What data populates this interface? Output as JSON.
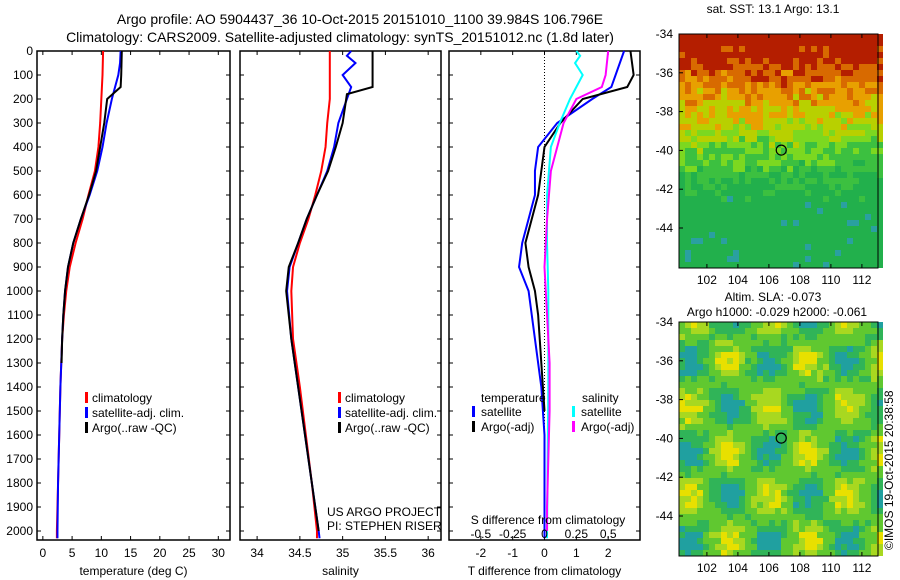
{
  "title_line1": "Argo profile: AO 5904437_36 10-Oct-2015 20151010_1100 39.984S 106.796E",
  "title_line2": "Climatology: CARS2009. Satellite-adjusted climatology: synTS_20151012.nc (1.8d later)",
  "credit": "©IMOS 19-Oct-2015 20:38:58",
  "project_line1": "US ARGO PROJECT",
  "project_line2": "PI: STEPHEN RISER",
  "colors": {
    "climatology": "#ff0000",
    "satellite": "#0000ff",
    "argo": "#000000",
    "sat_sal": "#00ffff",
    "argo_sal": "#ff00ff"
  },
  "chart_data": [
    {
      "type": "line",
      "name": "temperature",
      "xlabel": "temperature (deg C)",
      "xlim": [
        -1,
        32
      ],
      "xticks": [
        0,
        5,
        10,
        15,
        20,
        25,
        30
      ],
      "ylim": [
        0,
        2050
      ],
      "yticks": [
        0,
        100,
        200,
        300,
        400,
        500,
        600,
        700,
        800,
        900,
        1000,
        1100,
        1200,
        1300,
        1400,
        1500,
        1600,
        1700,
        1800,
        1900,
        2000
      ],
      "legend": [
        "climatology",
        "satellite-adj. clim.",
        "Argo(..raw -QC)"
      ],
      "series": [
        {
          "name": "climatology",
          "color": "#ff0000",
          "depth": [
            0,
            100,
            200,
            300,
            400,
            500,
            600,
            700,
            800,
            900,
            1000,
            1100,
            1200,
            1400,
            1600,
            1800,
            2000,
            2030
          ],
          "values": [
            10.3,
            10.2,
            10.0,
            9.8,
            9.5,
            8.9,
            7.8,
            6.8,
            5.6,
            4.6,
            4.0,
            3.6,
            3.3,
            3.0,
            2.8,
            2.6,
            2.4,
            2.4
          ]
        },
        {
          "name": "satellite-adj. clim.",
          "color": "#0000ff",
          "depth": [
            0,
            50,
            100,
            200,
            300,
            400,
            500,
            600,
            700,
            800,
            900,
            1000,
            1100,
            1200,
            1400,
            1600,
            1800,
            2000,
            2030
          ],
          "values": [
            13.3,
            13.2,
            12.9,
            11.8,
            10.9,
            10.2,
            9.3,
            8.0,
            6.5,
            5.2,
            4.3,
            3.8,
            3.5,
            3.3,
            3.0,
            2.8,
            2.6,
            2.5,
            2.5
          ]
        },
        {
          "name": "Argo(..raw -QC)",
          "color": "#000000",
          "depth": [
            0,
            100,
            150,
            200,
            300,
            400,
            500,
            600,
            700,
            800,
            900,
            1000,
            1100,
            1200,
            1300
          ],
          "values": [
            13.5,
            13.4,
            13.3,
            11.0,
            10.5,
            9.8,
            9.1,
            7.9,
            6.5,
            5.2,
            4.3,
            3.8,
            3.5,
            3.3,
            3.2
          ]
        }
      ]
    },
    {
      "type": "line",
      "name": "salinity",
      "xlabel": "salinity",
      "xlim": [
        33.8,
        36.15
      ],
      "xticks": [
        34,
        34.5,
        35,
        35.5,
        36
      ],
      "legend": [
        "climatology",
        "satellite-adj. clim.",
        "Argo(..raw -QC)"
      ],
      "series": [
        {
          "name": "climatology",
          "color": "#ff0000",
          "depth": [
            0,
            200,
            300,
            400,
            500,
            600,
            700,
            800,
            900,
            1000,
            1200,
            1400,
            1600,
            1800,
            2000,
            2030
          ],
          "values": [
            34.85,
            34.85,
            34.82,
            34.8,
            34.75,
            34.68,
            34.6,
            34.5,
            34.42,
            34.4,
            34.42,
            34.5,
            34.57,
            34.64,
            34.7,
            34.7
          ]
        },
        {
          "name": "satellite-adj. clim.",
          "color": "#0000ff",
          "depth": [
            0,
            20,
            50,
            100,
            150,
            200,
            300,
            400,
            500,
            600,
            700,
            800,
            900,
            1000,
            1200,
            1400,
            1600,
            1800,
            2000,
            2030
          ],
          "values": [
            35.1,
            35.05,
            35.15,
            35.0,
            35.1,
            35.05,
            34.95,
            34.9,
            34.82,
            34.7,
            34.58,
            34.48,
            34.38,
            34.35,
            34.4,
            34.48,
            34.56,
            34.64,
            34.72,
            34.73
          ]
        },
        {
          "name": "Argo(..raw -QC)",
          "color": "#000000",
          "depth": [
            0,
            150,
            180,
            300,
            400,
            500,
            600,
            700,
            800,
            900,
            1000,
            1200,
            1400,
            1600,
            1800,
            2000
          ],
          "values": [
            35.35,
            35.35,
            35.05,
            35.0,
            34.92,
            34.83,
            34.7,
            34.58,
            34.48,
            34.37,
            34.34,
            34.4,
            34.48,
            34.56,
            34.64,
            34.72
          ]
        }
      ]
    },
    {
      "type": "line",
      "name": "difference",
      "xlabel": "T difference from climatology",
      "xlabel2": "S difference from climatology",
      "xlim": [
        -3,
        3
      ],
      "xticks": [
        -2,
        -1,
        0,
        1,
        2
      ],
      "xticks2": [
        -0.5,
        -0.25,
        0,
        0.25,
        0.5
      ],
      "xtick2_labels": [
        "-0.5",
        "-0.25",
        "0",
        "0.25",
        "0.5"
      ],
      "legend_headers": [
        "temperature",
        "salinity"
      ],
      "legend": [
        "satellite",
        "Argo(-adj)",
        "satellite",
        "Argo(-adj)"
      ],
      "series": [
        {
          "name": "T satellite",
          "color": "#0000ff",
          "axis": "T",
          "depth": [
            0,
            150,
            200,
            300,
            400,
            500,
            600,
            700,
            800,
            900,
            1000,
            1200,
            1400,
            1600,
            2000,
            2030
          ],
          "values": [
            2.5,
            2.1,
            1.5,
            0.4,
            -0.2,
            -0.3,
            -0.3,
            -0.5,
            -0.7,
            -0.8,
            -0.5,
            -0.3,
            -0.1,
            0,
            0,
            0
          ]
        },
        {
          "name": "T Argo(-adj)",
          "color": "#000000",
          "axis": "T",
          "depth": [
            0,
            100,
            150,
            200,
            300,
            400,
            500,
            600,
            700,
            800,
            900,
            1000,
            1100,
            1300,
            1500
          ],
          "values": [
            2.7,
            2.8,
            2.6,
            1.2,
            0.5,
            0,
            -0.1,
            -0.2,
            -0.4,
            -0.6,
            -0.5,
            -0.3,
            -0.2,
            -0.1,
            0
          ]
        },
        {
          "name": "S satellite",
          "color": "#00ffff",
          "axis": "S",
          "depth": [
            0,
            20,
            50,
            100,
            200,
            300,
            400,
            600,
            800,
            1000,
            1400,
            2000,
            2030
          ],
          "values": [
            0.25,
            0.28,
            0.24,
            0.3,
            0.2,
            0.12,
            0.05,
            0.02,
            0.02,
            0.03,
            0.03,
            0.02,
            0.02
          ]
        },
        {
          "name": "S Argo(-adj)",
          "color": "#ff00ff",
          "axis": "S",
          "depth": [
            0,
            100,
            150,
            200,
            300,
            500,
            700,
            900,
            1100,
            1300,
            1500,
            1700,
            1900,
            2000
          ],
          "values": [
            0.5,
            0.48,
            0.45,
            0.25,
            0.15,
            0.05,
            0.02,
            0.0,
            0.02,
            0.04,
            0.04,
            0.03,
            0.02,
            0.02
          ]
        }
      ]
    }
  ],
  "maps": [
    {
      "name": "sst-map",
      "title": "sat. SST: 13.1  Argo: 13.1",
      "xticks": [
        102,
        104,
        106,
        108,
        110,
        112
      ],
      "yticks": [
        -34,
        -36,
        -38,
        -40,
        -42,
        -44
      ],
      "marker": [
        106.796,
        -39.984
      ]
    },
    {
      "name": "sla-map",
      "title1": "Altim. SLA: -0.073",
      "title2": "Argo h1000: -0.029 h2000: -0.061",
      "xticks": [
        102,
        104,
        106,
        108,
        110,
        112
      ],
      "yticks": [
        -34,
        -36,
        -38,
        -40,
        -42,
        -44
      ],
      "marker": [
        106.796,
        -39.984
      ]
    }
  ]
}
